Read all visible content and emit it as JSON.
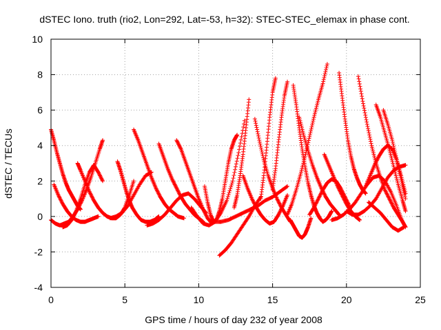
{
  "chart_data": {
    "type": "scatter",
    "title": "dSTEC Iono. truth (rio2, Lon=292, Lat=-53, h=32): STEC-STEC_elemax in phase cont.",
    "xlabel": "GPS time / hours of day 232 of year 2008",
    "ylabel": "dSTEC  / TECUs",
    "xlim": [
      0,
      25
    ],
    "ylim": [
      -4,
      10
    ],
    "xticks": [
      0,
      5,
      10,
      15,
      20,
      25
    ],
    "yticks": [
      -4,
      -2,
      0,
      2,
      4,
      6,
      8,
      10
    ],
    "grid": true,
    "marker": "+",
    "color": "#ff0000",
    "series": [
      {
        "x": [
          0.0,
          0.3,
          0.6,
          0.9,
          1.2,
          1.5,
          1.8,
          2.1,
          2.4,
          2.7,
          3.0,
          3.3,
          3.5
        ],
        "y": [
          -0.2,
          -0.4,
          -0.5,
          -0.4,
          -0.3,
          0.0,
          0.4,
          0.9,
          1.5,
          2.2,
          3.0,
          3.8,
          4.3
        ]
      },
      {
        "x": [
          0.0,
          0.2,
          0.4,
          0.6,
          0.8,
          1.0,
          1.2,
          1.4,
          1.6,
          1.8,
          2.0
        ],
        "y": [
          4.9,
          4.3,
          3.6,
          3.0,
          2.4,
          1.9,
          1.5,
          1.2,
          0.9,
          0.6,
          0.4
        ]
      },
      {
        "x": [
          0.2,
          0.5,
          0.8,
          1.1,
          1.4,
          1.7,
          2.0,
          2.3,
          2.6,
          2.9,
          3.2
        ],
        "y": [
          1.8,
          1.2,
          0.7,
          0.3,
          0.0,
          -0.2,
          -0.3,
          -0.3,
          -0.2,
          -0.1,
          0.0
        ]
      },
      {
        "x": [
          0.8,
          1.1,
          1.4,
          1.7,
          2.0,
          2.3,
          2.6,
          2.9,
          3.2,
          3.5
        ],
        "y": [
          -0.6,
          -0.5,
          -0.2,
          0.3,
          1.0,
          1.8,
          2.5,
          2.9,
          2.5,
          2.0
        ]
      },
      {
        "x": [
          1.8,
          2.0,
          2.3,
          2.6,
          2.9,
          3.2,
          3.5,
          3.8,
          4.1,
          4.4,
          4.7,
          5.0,
          5.3,
          5.6
        ],
        "y": [
          3.0,
          2.6,
          2.0,
          1.4,
          0.9,
          0.5,
          0.2,
          0.0,
          -0.1,
          -0.1,
          0.1,
          0.5,
          1.2,
          2.0
        ]
      },
      {
        "x": [
          4.5,
          4.7,
          4.9,
          5.1,
          5.3,
          5.5,
          5.8,
          6.1,
          6.4,
          6.7,
          7.0,
          7.3
        ],
        "y": [
          3.1,
          2.6,
          2.0,
          1.4,
          0.9,
          0.5,
          0.1,
          -0.2,
          -0.3,
          -0.3,
          -0.2,
          0.0
        ]
      },
      {
        "x": [
          5.6,
          5.9,
          6.2,
          6.5,
          6.8,
          7.1,
          7.4,
          7.7,
          8.0,
          8.3,
          8.6,
          9.0
        ],
        "y": [
          4.9,
          4.3,
          3.6,
          2.9,
          2.2,
          1.6,
          1.1,
          0.7,
          0.4,
          0.2,
          0.0,
          -0.1
        ]
      },
      {
        "x": [
          4.0,
          4.4,
          4.8,
          5.2,
          5.6,
          6.0,
          6.4,
          6.8
        ],
        "y": [
          -0.1,
          0.0,
          0.2,
          0.6,
          1.2,
          1.8,
          2.3,
          2.5
        ]
      },
      {
        "x": [
          6.5,
          6.9,
          7.3,
          7.7,
          8.1,
          8.5,
          8.9,
          9.3,
          9.7,
          10.1,
          10.5
        ],
        "y": [
          -0.5,
          -0.4,
          -0.2,
          0.1,
          0.5,
          0.9,
          1.2,
          1.3,
          1.0,
          0.6,
          0.2
        ]
      },
      {
        "x": [
          7.3,
          7.6,
          7.9,
          8.2,
          8.5,
          8.8,
          9.1,
          9.4,
          9.7,
          10.0,
          10.3
        ],
        "y": [
          4.1,
          3.4,
          2.7,
          2.1,
          1.6,
          1.1,
          0.7,
          0.4,
          0.1,
          -0.1,
          -0.3
        ]
      },
      {
        "x": [
          8.5,
          8.8,
          9.1,
          9.4,
          9.7,
          10.0,
          10.3,
          10.6,
          10.9
        ],
        "y": [
          4.3,
          3.8,
          3.1,
          2.4,
          1.7,
          1.0,
          0.4,
          -0.1,
          -0.4
        ]
      },
      {
        "x": [
          9.5,
          9.9,
          10.3,
          10.7,
          11.1,
          11.5,
          11.9,
          12.3,
          12.7,
          13.1
        ],
        "y": [
          0.5,
          0.0,
          -0.4,
          -0.5,
          -0.3,
          0.2,
          0.9,
          2.0,
          3.6,
          5.4
        ]
      },
      {
        "x": [
          10.4,
          10.6,
          10.8,
          11.0,
          11.2,
          11.4,
          11.6,
          11.8,
          12.0,
          12.2,
          12.4,
          12.6
        ],
        "y": [
          1.7,
          0.8,
          0.1,
          -0.3,
          -0.2,
          0.3,
          1.0,
          2.0,
          3.0,
          3.8,
          4.3,
          4.6
        ]
      },
      {
        "x": [
          11.4,
          11.8,
          12.2,
          12.6,
          13.0,
          13.4,
          13.8,
          14.2
        ],
        "y": [
          -2.2,
          -1.9,
          -1.5,
          -1.0,
          -0.5,
          0.0,
          0.6,
          1.1
        ]
      },
      {
        "x": [
          11.0,
          11.5,
          12.0,
          12.5,
          13.0,
          13.5,
          14.0,
          14.5,
          15.0,
          15.5,
          16.0
        ],
        "y": [
          -0.3,
          -0.3,
          -0.2,
          0.0,
          0.2,
          0.4,
          0.6,
          0.9,
          1.1,
          1.4,
          1.7
        ]
      },
      {
        "x": [
          12.4,
          12.6,
          12.8,
          13.0,
          13.2,
          13.4
        ],
        "y": [
          0.5,
          1.2,
          2.3,
          3.5,
          5.0,
          6.6
        ]
      },
      {
        "x": [
          13.0,
          13.3,
          13.6,
          13.9,
          14.2,
          14.5,
          14.8,
          15.1,
          15.4,
          15.7,
          16.0
        ],
        "y": [
          2.3,
          1.6,
          1.0,
          0.5,
          0.1,
          -0.2,
          -0.4,
          -0.3,
          0.1,
          0.6,
          1.2
        ]
      },
      {
        "x": [
          13.8,
          14.1,
          14.4,
          14.7,
          15.0,
          15.3,
          15.6,
          15.9,
          16.2
        ],
        "y": [
          5.5,
          4.3,
          3.2,
          2.3,
          1.6,
          1.0,
          0.5,
          0.1,
          -0.3
        ]
      },
      {
        "x": [
          14.2,
          14.4,
          14.6,
          14.8,
          15.0,
          15.2
        ],
        "y": [
          1.0,
          2.3,
          3.9,
          5.6,
          7.0,
          7.8
        ]
      },
      {
        "x": [
          15.0,
          15.2,
          15.4,
          15.6,
          15.8,
          16.0
        ],
        "y": [
          1.5,
          2.7,
          4.2,
          5.6,
          6.8,
          7.6
        ]
      },
      {
        "x": [
          16.4,
          16.6,
          16.8,
          17.0,
          17.2,
          17.4,
          17.6,
          17.8,
          18.0,
          18.2,
          18.4,
          18.6,
          18.8,
          19.0
        ],
        "y": [
          7.4,
          6.3,
          5.0,
          3.8,
          2.8,
          1.9,
          1.2,
          0.6,
          0.2,
          -0.1,
          -0.3,
          -0.2,
          0.0,
          0.3
        ]
      },
      {
        "x": [
          16.2,
          16.4,
          16.6,
          16.8,
          17.0,
          17.2,
          17.4,
          17.6
        ],
        "y": [
          -0.2,
          -0.5,
          -0.8,
          -1.1,
          -1.2,
          -1.0,
          -0.6,
          -0.1
        ]
      },
      {
        "x": [
          16.0,
          16.3,
          16.6,
          16.9,
          17.2,
          17.5,
          17.8,
          18.1,
          18.4,
          18.7
        ],
        "y": [
          0.1,
          0.7,
          1.5,
          2.4,
          3.4,
          4.5,
          5.6,
          6.6,
          7.5,
          8.6
        ]
      },
      {
        "x": [
          16.8,
          17.1,
          17.4,
          17.7,
          18.0,
          18.3,
          18.6,
          18.9,
          19.2,
          19.5
        ],
        "y": [
          5.6,
          4.6,
          3.7,
          2.9,
          2.2,
          1.6,
          1.1,
          0.7,
          0.4,
          0.1
        ]
      },
      {
        "x": [
          17.5,
          17.8,
          18.1,
          18.4,
          18.7,
          19.0,
          19.3,
          19.6,
          19.9,
          20.2
        ],
        "y": [
          0.1,
          0.5,
          1.0,
          1.5,
          1.9,
          2.1,
          2.0,
          1.6,
          1.1,
          0.6
        ]
      },
      {
        "x": [
          18.5,
          18.8,
          19.1,
          19.4,
          19.7,
          20.0,
          20.3,
          20.6,
          20.9
        ],
        "y": [
          3.5,
          2.9,
          2.3,
          1.7,
          1.2,
          0.7,
          0.3,
          0.0,
          -0.2
        ]
      },
      {
        "x": [
          19.5,
          19.7,
          19.9,
          20.1,
          20.3,
          20.5,
          20.7,
          20.9,
          21.1,
          21.3
        ],
        "y": [
          8.1,
          6.8,
          5.5,
          4.3,
          3.4,
          2.7,
          2.2,
          1.8,
          1.5,
          1.3
        ]
      },
      {
        "x": [
          20.8,
          21.1,
          21.4,
          21.7,
          22.0,
          22.3,
          22.6,
          22.9,
          23.2,
          23.5,
          23.8,
          24.0
        ],
        "y": [
          7.9,
          6.5,
          5.2,
          4.0,
          3.0,
          2.2,
          1.5,
          1.0,
          0.5,
          0.1,
          -0.3,
          -0.6
        ]
      },
      {
        "x": [
          20.0,
          20.4,
          20.8,
          21.2,
          21.6,
          22.0,
          22.4,
          22.8,
          23.2,
          23.6,
          24.0
        ],
        "y": [
          0.3,
          0.1,
          0.1,
          0.3,
          0.6,
          1.0,
          1.6,
          2.2,
          2.6,
          2.8,
          2.9
        ]
      },
      {
        "x": [
          21.3,
          21.6,
          21.9,
          22.2,
          22.5,
          22.8,
          23.1,
          23.4,
          23.7,
          24.0
        ],
        "y": [
          1.7,
          2.3,
          2.9,
          3.4,
          3.8,
          4.0,
          3.8,
          3.2,
          2.3,
          1.3
        ]
      },
      {
        "x": [
          22.0,
          22.3,
          22.6,
          22.9,
          23.2,
          23.5,
          23.8,
          24.0
        ],
        "y": [
          6.3,
          5.6,
          4.7,
          3.8,
          2.8,
          1.8,
          0.9,
          0.3
        ]
      },
      {
        "x": [
          22.5,
          22.8,
          23.1,
          23.4,
          23.7,
          24.0
        ],
        "y": [
          6.0,
          5.2,
          4.3,
          3.2,
          2.1,
          1.0
        ]
      },
      {
        "x": [
          21.5,
          21.9,
          22.3,
          22.7,
          23.1,
          23.5,
          23.9
        ],
        "y": [
          0.8,
          0.5,
          0.2,
          -0.2,
          -0.6,
          -0.8,
          -0.6
        ]
      },
      {
        "x": [
          19.0,
          19.4,
          19.8,
          20.2,
          20.6,
          21.0,
          21.4,
          21.8,
          22.2,
          22.6,
          23.0,
          23.4,
          23.8
        ],
        "y": [
          -0.2,
          -0.1,
          0.1,
          0.4,
          0.8,
          1.3,
          1.8,
          2.2,
          2.3,
          2.0,
          1.4,
          0.6,
          -0.3
        ]
      }
    ]
  }
}
